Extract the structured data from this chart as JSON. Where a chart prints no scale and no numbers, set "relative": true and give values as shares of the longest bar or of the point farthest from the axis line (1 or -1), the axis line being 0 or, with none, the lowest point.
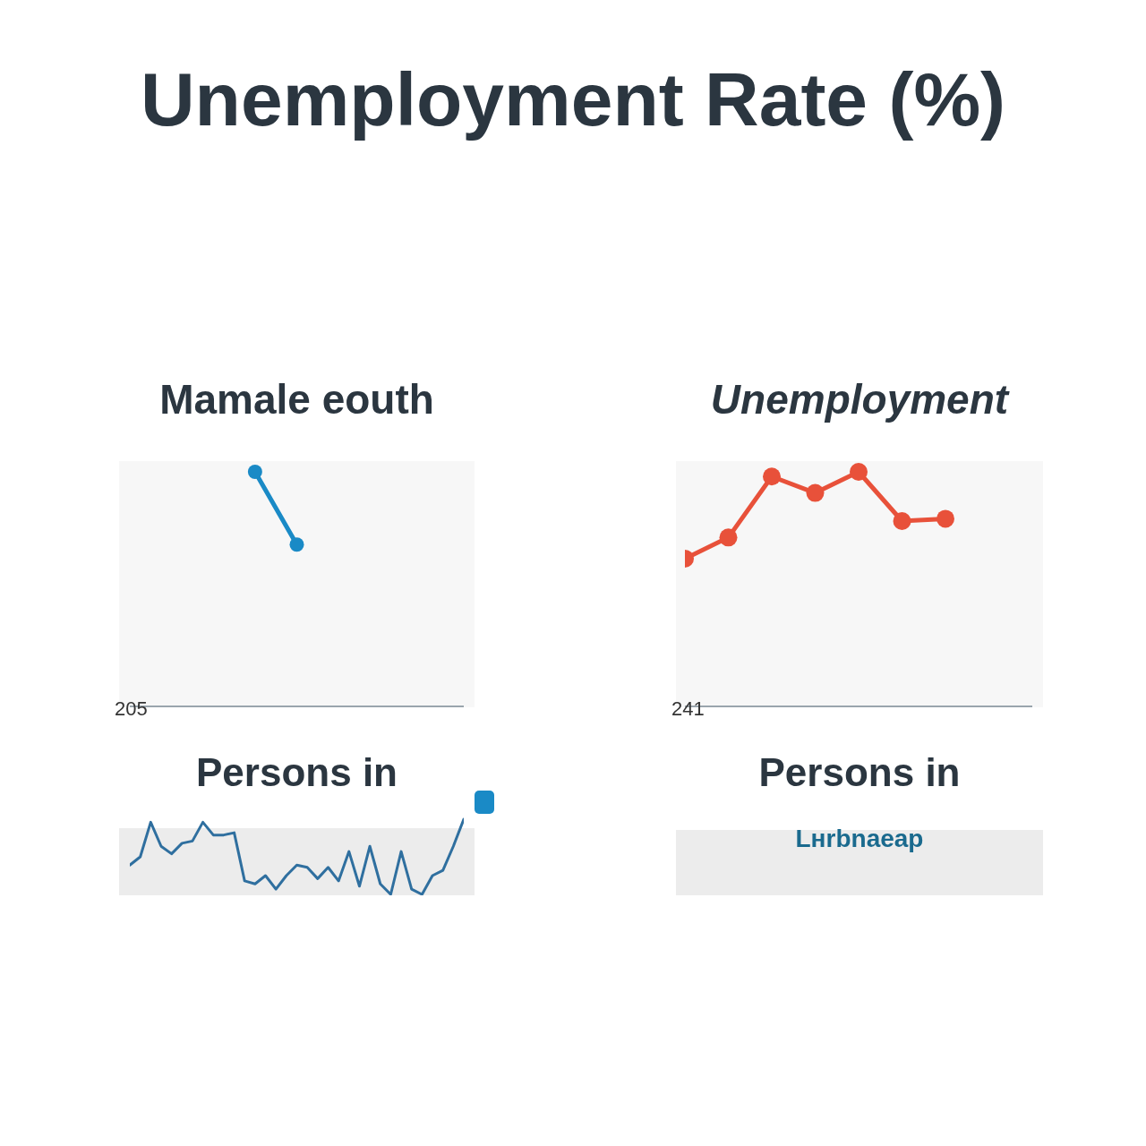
{
  "chart_data": [
    {
      "type": "other",
      "title": "Unemployment Rate (%)"
    },
    {
      "type": "line",
      "title": "Mamale eouth",
      "relative": true,
      "marker": "circle",
      "line_style": "solid",
      "annotations": [
        "205"
      ],
      "categories": [
        null,
        null,
        null,
        null,
        null,
        null,
        null,
        null,
        null
      ],
      "series": [
        {
          "color": "#1a8ac6",
          "values": [
            null,
            null,
            null,
            1,
            0.69,
            null,
            null,
            null,
            null
          ]
        }
      ]
    },
    {
      "type": "line",
      "title": "Unemployment",
      "relative": true,
      "marker": "circle",
      "line_style": "solid",
      "annotations": [
        "241"
      ],
      "categories": [
        null,
        null,
        null,
        null,
        null,
        null,
        null,
        null,
        null
      ],
      "series": [
        {
          "color": "#e8513a",
          "values": [
            0.63,
            0.72,
            0.98,
            0.91,
            1,
            0.79,
            0.8,
            null,
            null
          ]
        }
      ]
    },
    {
      "type": "line",
      "title": "Persons in",
      "relative": true,
      "marker": "none",
      "line_style": "solid",
      "categories": [
        null,
        null,
        null,
        null,
        null,
        null,
        null,
        null,
        null,
        null,
        null,
        null,
        null,
        null,
        null,
        null,
        null,
        null,
        null,
        null,
        null,
        null,
        null,
        null,
        null,
        null,
        null,
        null,
        null,
        null,
        null,
        null,
        null
      ],
      "series": [
        {
          "color": "#2f6f9f",
          "values": [
            0.39,
            0.5,
            0.96,
            0.64,
            0.54,
            0.68,
            0.71,
            0.96,
            0.79,
            0.79,
            0.82,
            0.18,
            0.14,
            0.25,
            0.07,
            0.25,
            0.39,
            0.36,
            0.21,
            0.36,
            0.18,
            0.57,
            0.11,
            0.64,
            0.14,
            0,
            0.57,
            0.07,
            0,
            0.25,
            0.32,
            0.64,
            1
          ]
        }
      ]
    },
    {
      "type": "other",
      "title": "Persons in",
      "annotations": [
        "Lнrbnaeap"
      ]
    }
  ]
}
